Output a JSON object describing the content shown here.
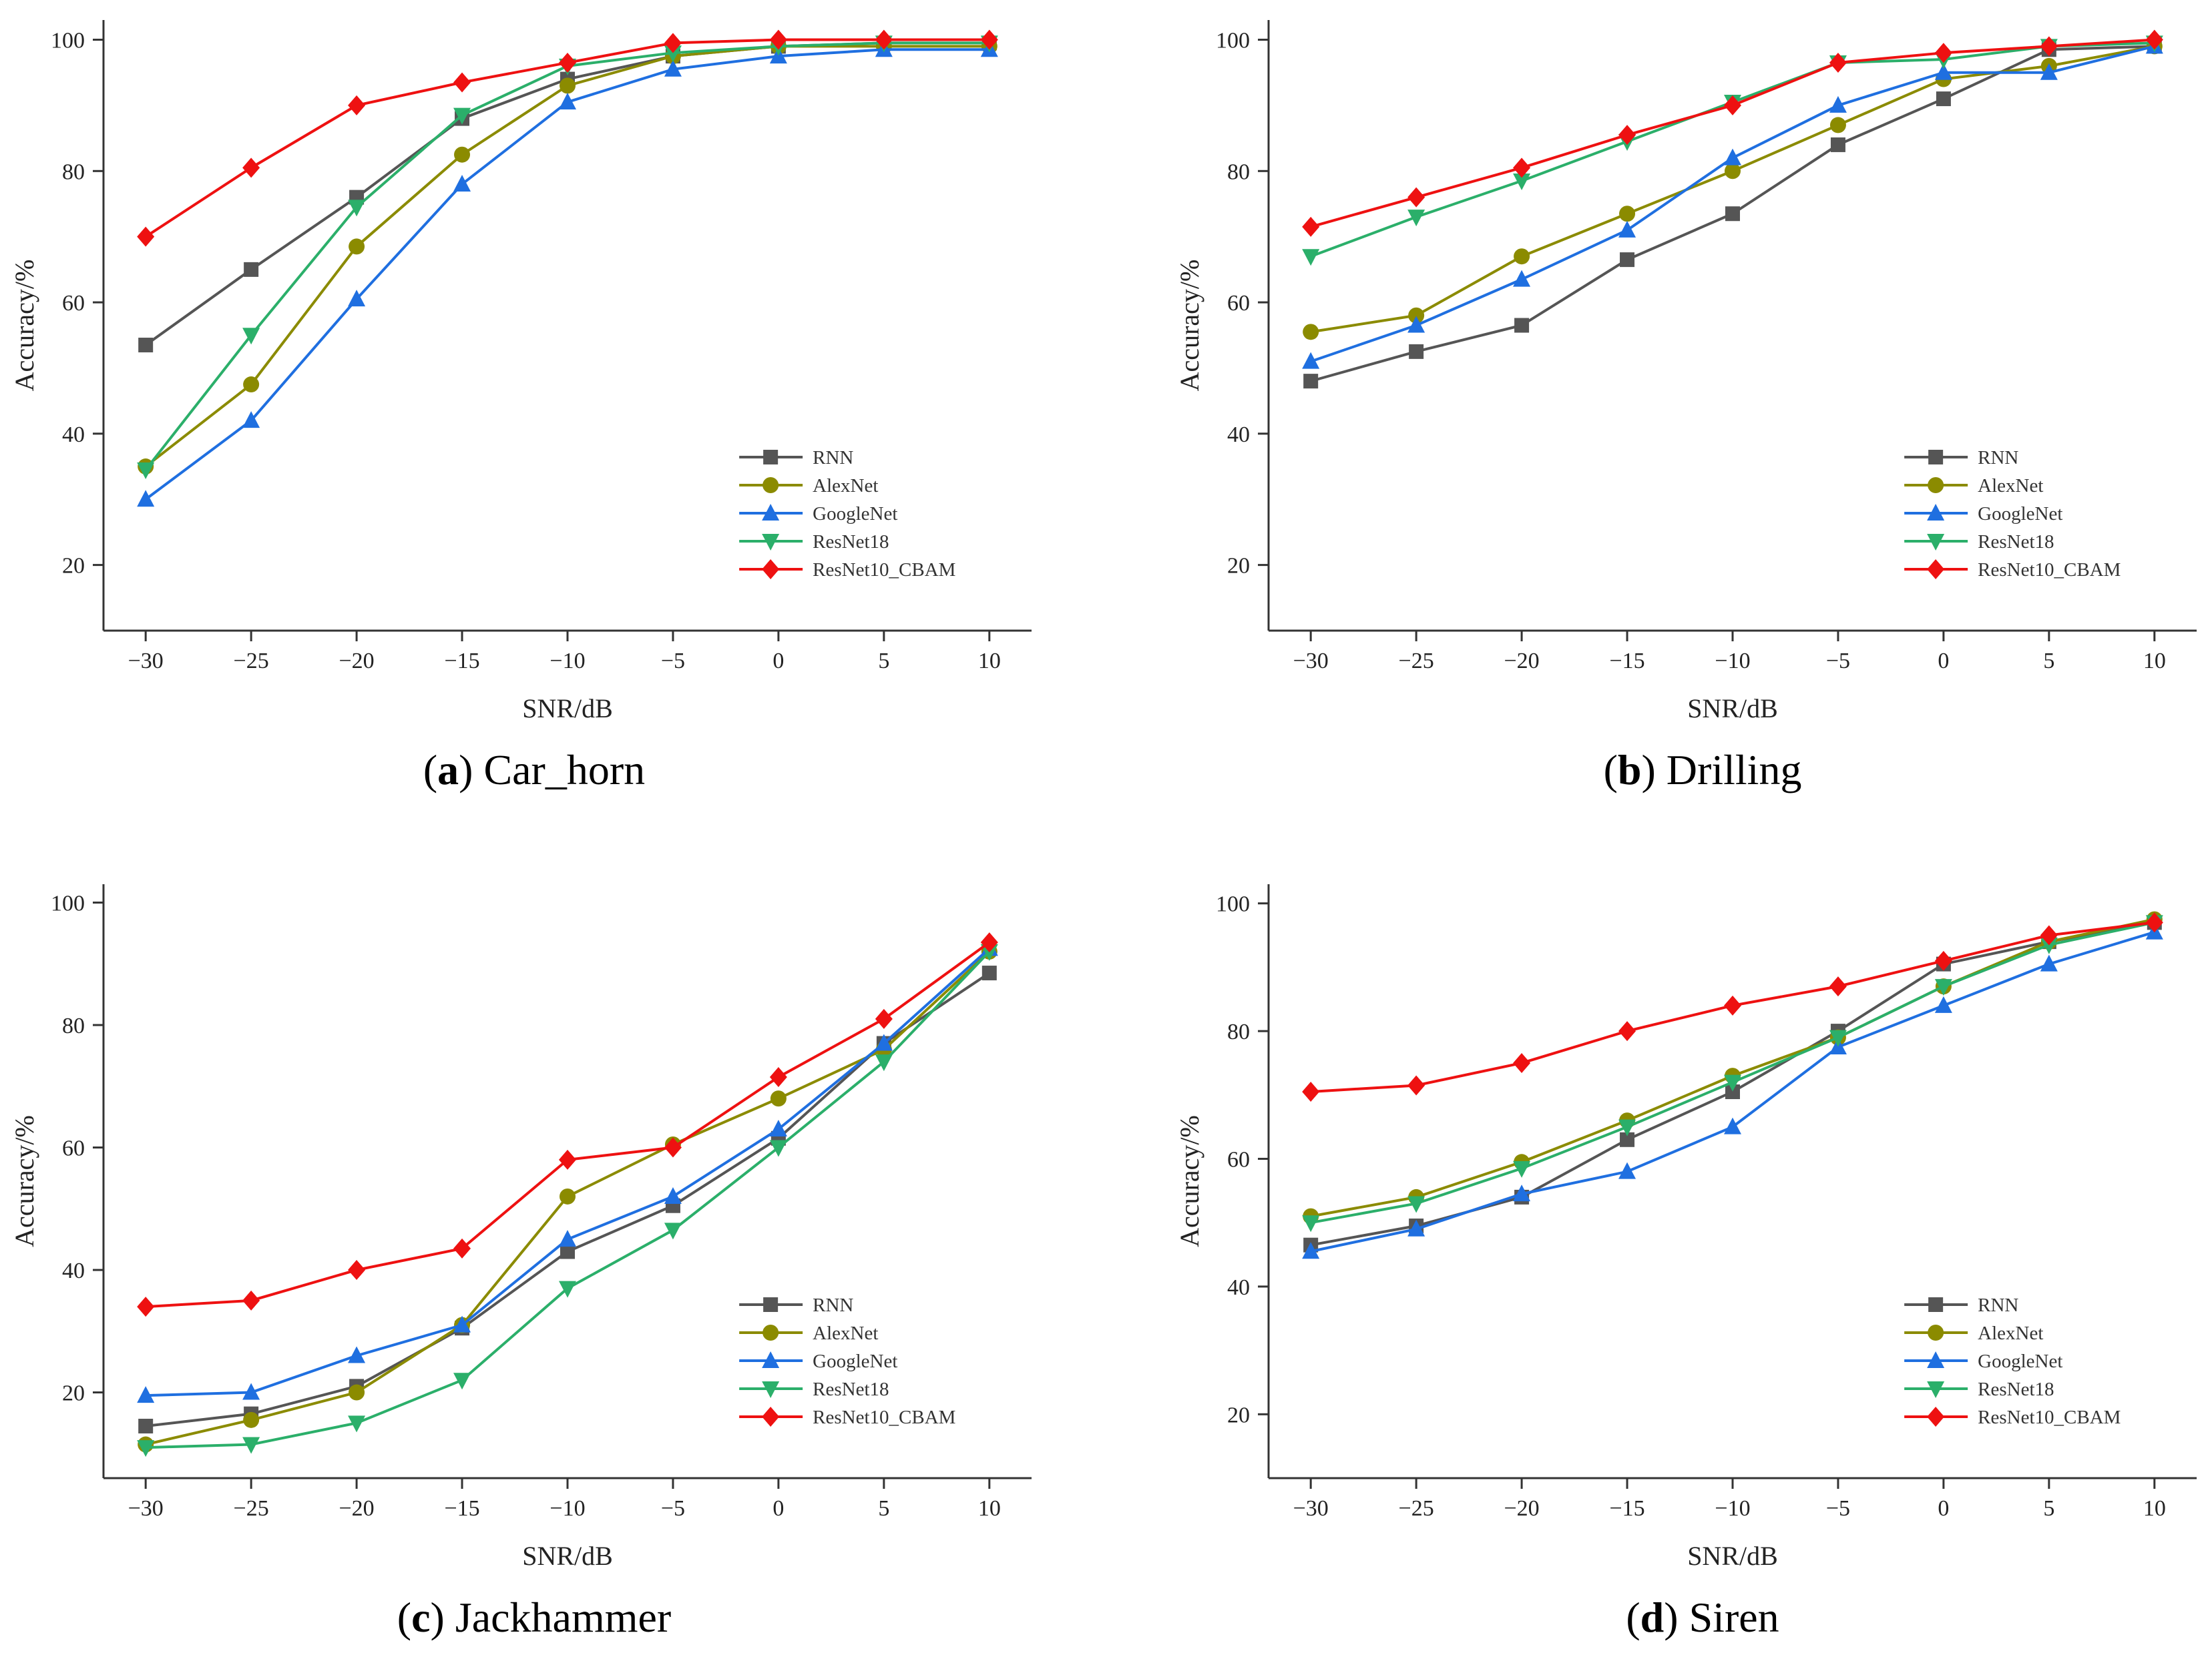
{
  "chart_data": [
    {
      "type": "line",
      "panel": "a",
      "caption": "Car_horn",
      "xlabel": "SNR/dB",
      "ylabel": "Accuracy/%",
      "x": [
        -30,
        -25,
        -20,
        -15,
        -10,
        -5,
        0,
        5,
        10
      ],
      "xlim": [
        -32,
        12
      ],
      "ylim": [
        10,
        103
      ],
      "yticks": [
        20,
        40,
        60,
        80,
        100
      ],
      "legend_position": "bottom-right",
      "series": [
        {
          "name": "RNN",
          "color": "#555555",
          "marker": "square",
          "values": [
            53.5,
            65,
            76,
            88,
            94,
            97.5,
            99,
            99.5,
            99.5
          ]
        },
        {
          "name": "AlexNet",
          "color": "#8B8B00",
          "marker": "circle",
          "values": [
            35,
            47.5,
            68.5,
            82.5,
            93,
            97.5,
            99,
            99,
            99
          ]
        },
        {
          "name": "GoogleNet",
          "color": "#1F6FE0",
          "marker": "triangle-up",
          "values": [
            30,
            42,
            60.5,
            78,
            90.5,
            95.5,
            97.5,
            98.5,
            98.5
          ]
        },
        {
          "name": "ResNet18",
          "color": "#2BAF6A",
          "marker": "triangle-down",
          "values": [
            34.5,
            55,
            74.5,
            88.5,
            96,
            98,
            99,
            99.5,
            99.5
          ]
        },
        {
          "name": "ResNet10_CBAM",
          "color": "#EE1111",
          "marker": "diamond",
          "values": [
            70,
            80.5,
            90,
            93.5,
            96.5,
            99.5,
            100,
            100,
            100
          ]
        }
      ]
    },
    {
      "type": "line",
      "panel": "b",
      "caption": "Drilling",
      "xlabel": "SNR/dB",
      "ylabel": "Accuracy/%",
      "x": [
        -30,
        -25,
        -20,
        -15,
        -10,
        -5,
        0,
        5,
        10
      ],
      "xlim": [
        -32,
        12
      ],
      "ylim": [
        10,
        103
      ],
      "yticks": [
        20,
        40,
        60,
        80,
        100
      ],
      "legend_position": "bottom-right",
      "series": [
        {
          "name": "RNN",
          "color": "#555555",
          "marker": "square",
          "values": [
            48,
            52.5,
            56.5,
            66.5,
            73.5,
            84,
            91,
            98.5,
            99
          ]
        },
        {
          "name": "AlexNet",
          "color": "#8B8B00",
          "marker": "circle",
          "values": [
            55.5,
            58,
            67,
            73.5,
            80,
            87,
            94,
            96,
            99
          ]
        },
        {
          "name": "GoogleNet",
          "color": "#1F6FE0",
          "marker": "triangle-up",
          "values": [
            51,
            56.5,
            63.5,
            71,
            82,
            90,
            95,
            95,
            99
          ]
        },
        {
          "name": "ResNet18",
          "color": "#2BAF6A",
          "marker": "triangle-down",
          "values": [
            67,
            73,
            78.5,
            84.5,
            90.5,
            96.5,
            97,
            99,
            99.5
          ]
        },
        {
          "name": "ResNet10_CBAM",
          "color": "#EE1111",
          "marker": "diamond",
          "values": [
            71.5,
            76,
            80.5,
            85.5,
            90,
            96.5,
            98,
            99,
            100
          ]
        }
      ]
    },
    {
      "type": "line",
      "panel": "c",
      "caption": "Jackhammer",
      "xlabel": "SNR/dB",
      "ylabel": "Accuracy/%",
      "x": [
        -30,
        -25,
        -20,
        -15,
        -10,
        -5,
        0,
        5,
        10
      ],
      "xlim": [
        -32,
        12
      ],
      "ylim": [
        6,
        103
      ],
      "yticks": [
        20,
        40,
        60,
        80,
        100
      ],
      "legend_position": "bottom-right",
      "series": [
        {
          "name": "RNN",
          "color": "#555555",
          "marker": "square",
          "values": [
            14.5,
            16.5,
            21,
            30.5,
            43,
            50.5,
            61.5,
            77,
            88.5
          ]
        },
        {
          "name": "AlexNet",
          "color": "#8B8B00",
          "marker": "circle",
          "values": [
            11.5,
            15.5,
            20,
            31,
            52,
            60.5,
            68,
            76,
            92
          ]
        },
        {
          "name": "GoogleNet",
          "color": "#1F6FE0",
          "marker": "triangle-up",
          "values": [
            19.5,
            20,
            26,
            31,
            45,
            52,
            63,
            77,
            92.5
          ]
        },
        {
          "name": "ResNet18",
          "color": "#2BAF6A",
          "marker": "triangle-down",
          "values": [
            11,
            11.5,
            15,
            22,
            37,
            46.5,
            60,
            74,
            92
          ]
        },
        {
          "name": "ResNet10_CBAM",
          "color": "#EE1111",
          "marker": "diamond",
          "values": [
            34,
            35,
            40,
            43.5,
            58,
            60,
            71.5,
            81,
            93.5
          ]
        }
      ]
    },
    {
      "type": "line",
      "panel": "d",
      "caption": "Siren",
      "xlabel": "SNR/dB",
      "ylabel": "Accuracy/%",
      "x": [
        -30,
        -25,
        -20,
        -15,
        -10,
        -5,
        0,
        5,
        10
      ],
      "xlim": [
        -32,
        12
      ],
      "ylim": [
        10,
        103
      ],
      "yticks": [
        20,
        40,
        60,
        80,
        100
      ],
      "legend_position": "bottom-right",
      "series": [
        {
          "name": "RNN",
          "color": "#555555",
          "marker": "square",
          "values": [
            46.5,
            49.5,
            54,
            63,
            70.5,
            80,
            90.5,
            94,
            97
          ]
        },
        {
          "name": "AlexNet",
          "color": "#8B8B00",
          "marker": "circle",
          "values": [
            51,
            54,
            59.5,
            66,
            73,
            79,
            87,
            94,
            97.5
          ]
        },
        {
          "name": "GoogleNet",
          "color": "#1F6FE0",
          "marker": "triangle-up",
          "values": [
            45.5,
            49,
            54.5,
            58,
            65,
            77.5,
            84,
            90.5,
            95.5
          ]
        },
        {
          "name": "ResNet18",
          "color": "#2BAF6A",
          "marker": "triangle-down",
          "values": [
            50,
            53,
            58.5,
            65,
            72,
            79,
            87,
            93.5,
            97
          ]
        },
        {
          "name": "ResNet10_CBAM",
          "color": "#EE1111",
          "marker": "diamond",
          "values": [
            70.5,
            71.5,
            75,
            80,
            84,
            87,
            91,
            95,
            97
          ]
        }
      ]
    }
  ]
}
